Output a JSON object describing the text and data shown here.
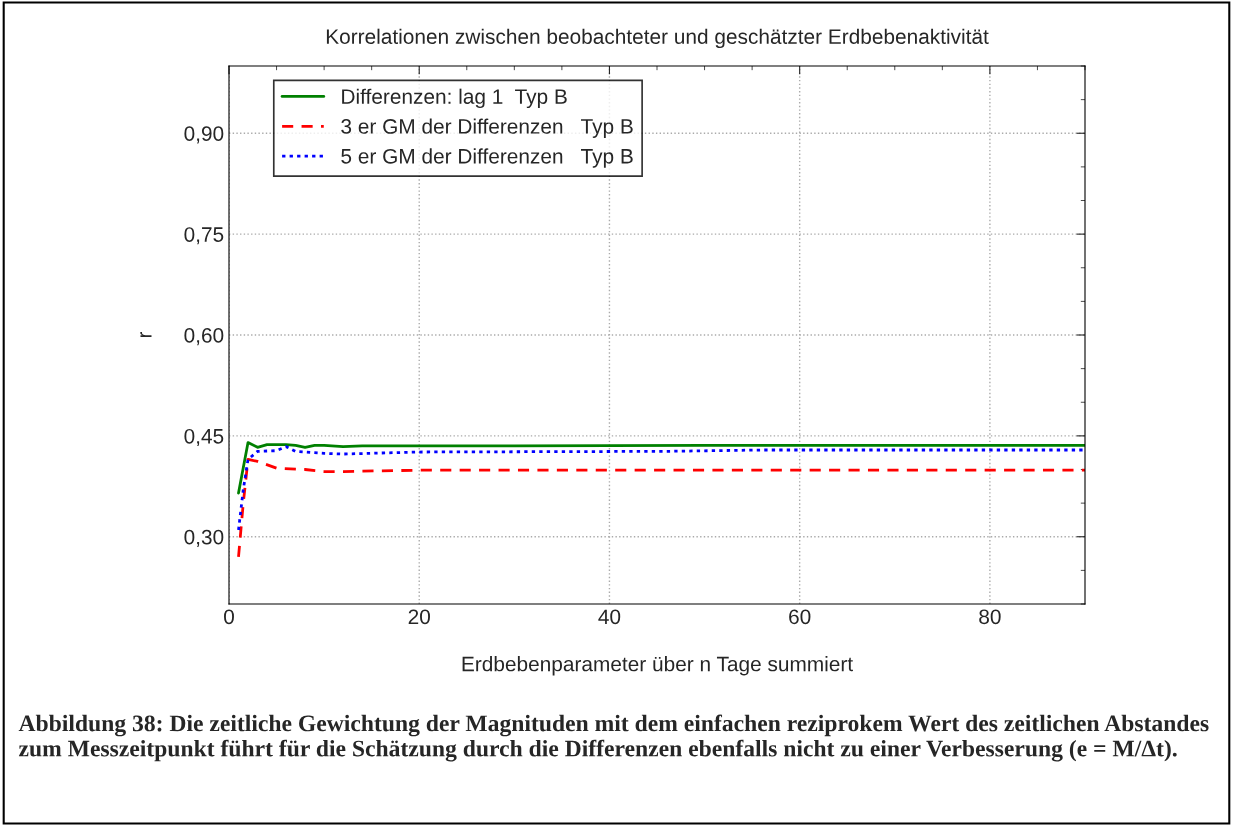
{
  "chart_data": {
    "type": "line",
    "title": "Korrelationen zwischen beobachteter und geschätzter Erdbebenaktivität",
    "xlabel": "Erdbebenparameter über n Tage summiert",
    "ylabel": "r",
    "xlim": [
      0,
      90
    ],
    "xticks": [
      0,
      20,
      40,
      60,
      80
    ],
    "ylim": [
      0.2,
      1.0
    ],
    "yticks": [
      {
        "value": 0.3,
        "label": "0,30"
      },
      {
        "value": 0.45,
        "label": "0,45"
      },
      {
        "value": 0.6,
        "label": "0,60"
      },
      {
        "value": 0.75,
        "label": "0,75"
      },
      {
        "value": 0.9,
        "label": "0,90"
      }
    ],
    "grid": true,
    "legend": "top left",
    "series": [
      {
        "name": "Differenzen: lag 1  Typ B",
        "color": "#008000",
        "line_style": "solid",
        "x": [
          1,
          2,
          3,
          4,
          6,
          7,
          8,
          9,
          10,
          12,
          14,
          20,
          30,
          50,
          60,
          90
        ],
        "values": [
          0.365,
          0.44,
          0.433,
          0.437,
          0.437,
          0.436,
          0.433,
          0.436,
          0.436,
          0.434,
          0.435,
          0.435,
          0.435,
          0.436,
          0.436,
          0.436
        ]
      },
      {
        "name": "3 er GM der Differenzen   Typ B",
        "color": "#ff0000",
        "line_style": "dashed",
        "x": [
          1,
          1.5,
          2,
          3,
          5,
          8,
          10,
          12,
          20,
          30,
          90
        ],
        "values": [
          0.27,
          0.35,
          0.415,
          0.412,
          0.402,
          0.4,
          0.397,
          0.397,
          0.399,
          0.399,
          0.399
        ]
      },
      {
        "name": "5 er GM der Differenzen   Typ B",
        "color": "#0000ff",
        "line_style": "dotted",
        "x": [
          1,
          1.5,
          2,
          3,
          5,
          6,
          7,
          10,
          12,
          20,
          46,
          56,
          90
        ],
        "values": [
          0.31,
          0.37,
          0.415,
          0.427,
          0.428,
          0.434,
          0.427,
          0.424,
          0.423,
          0.426,
          0.427,
          0.429,
          0.429
        ]
      }
    ],
    "annotations": [
      "Abbildung 38: Die zeitliche Gewichtung der Magnituden mit dem einfachen reziprokem Wert des zeitlichen Abstandes zum Messzeitpunkt führt für die Schätzung durch die Differenzen ebenfalls nicht zu einer Verbesserung (e = M/Δt)."
    ]
  }
}
